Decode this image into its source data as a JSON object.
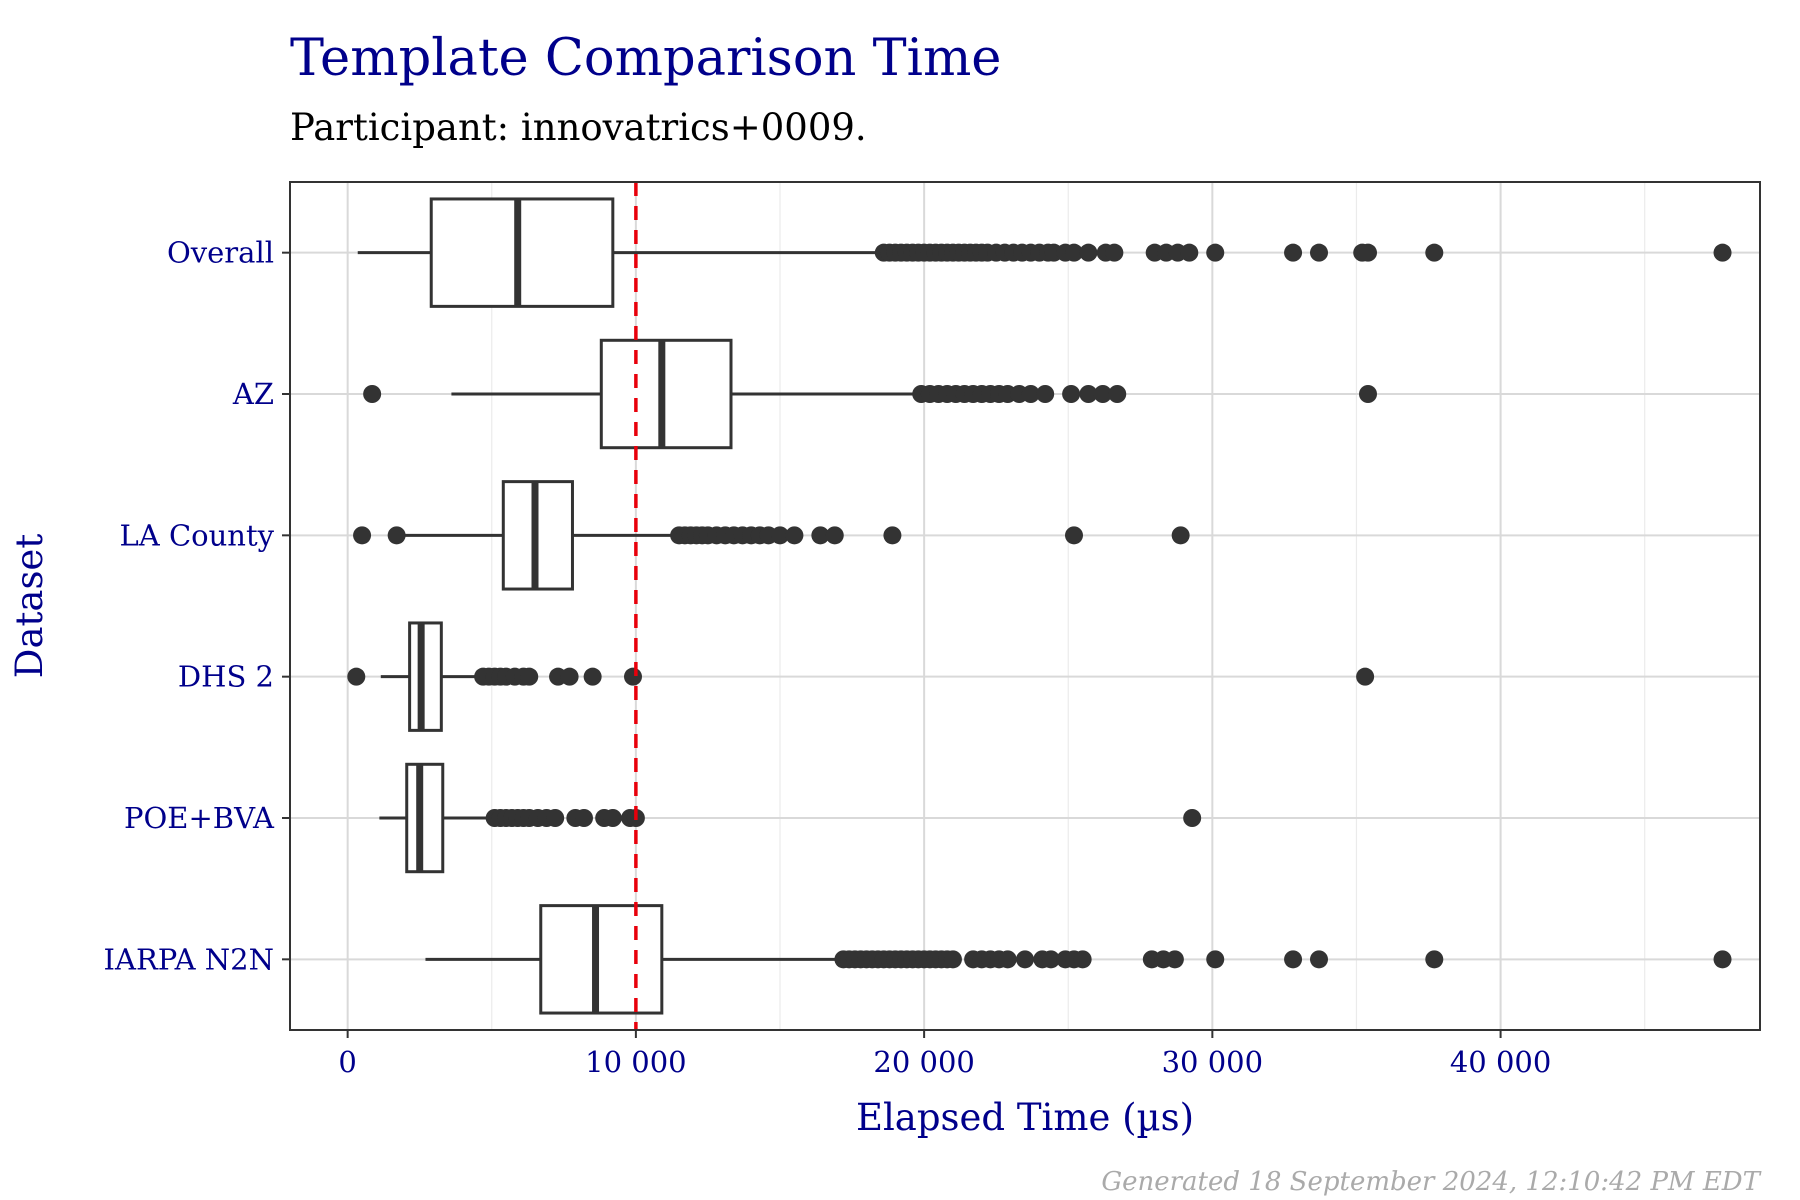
{
  "chart_data": {
    "type": "boxplot",
    "orientation": "horizontal",
    "title": "Template Comparison Time",
    "subtitle": "Participant: innovatrics+0009.",
    "xlabel": "Elapsed Time (µs)",
    "ylabel": "Dataset",
    "caption": "Generated 18 September 2024, 12:10:42 PM EDT",
    "xlim": [
      -2000,
      49000
    ],
    "xticks": [
      0,
      10000,
      20000,
      30000,
      40000
    ],
    "xtick_labels": [
      "0",
      "10 000",
      "20 000",
      "30 000",
      "40 000"
    ],
    "reference_line": {
      "x": 10000,
      "color": "#e8000b",
      "style": "dashed"
    },
    "grid": true,
    "colors": {
      "title": "#00008b",
      "axis_text": "#00008b",
      "box_stroke": "#333333",
      "grid": "#d9d9d9",
      "caption": "#aaaaaa"
    },
    "categories": [
      "Overall",
      "AZ",
      "LA County",
      "DHS 2",
      "POE+BVA",
      "IARPA N2N"
    ],
    "boxes": [
      {
        "name": "Overall",
        "whisker_low": 350,
        "q1": 2900,
        "median": 5900,
        "q3": 9200,
        "whisker_high": 18500,
        "outliers": [
          18600,
          18800,
          19000,
          19200,
          19400,
          19600,
          19800,
          20000,
          20200,
          20400,
          20600,
          20800,
          21000,
          21200,
          21400,
          21600,
          21800,
          22000,
          22200,
          22500,
          22800,
          23100,
          23400,
          23700,
          24000,
          24300,
          24500,
          24900,
          25200,
          25700,
          26300,
          26600,
          28000,
          28400,
          28800,
          29200,
          30100,
          32800,
          33700,
          35200,
          35400,
          37700,
          47700
        ]
      },
      {
        "name": "AZ",
        "whisker_low": 3600,
        "q1": 8800,
        "median": 10900,
        "q3": 13300,
        "whisker_high": 19800,
        "outliers": [
          850,
          19900,
          20200,
          20500,
          20800,
          21100,
          21400,
          21700,
          22000,
          22300,
          22600,
          22900,
          23300,
          23700,
          24200,
          25100,
          25700,
          26200,
          26700,
          35400
        ]
      },
      {
        "name": "LA County",
        "whisker_low": 2000,
        "q1": 5400,
        "median": 6500,
        "q3": 7800,
        "whisker_high": 11400,
        "outliers": [
          500,
          1700,
          11500,
          11700,
          11900,
          12100,
          12300,
          12500,
          12800,
          13100,
          13400,
          13700,
          14000,
          14300,
          14600,
          15000,
          15500,
          16400,
          16900,
          18900,
          25200,
          28900
        ]
      },
      {
        "name": "DHS 2",
        "whisker_low": 1150,
        "q1": 2150,
        "median": 2550,
        "q3": 3250,
        "whisker_high": 4600,
        "outliers": [
          300,
          4700,
          4900,
          5100,
          5300,
          5500,
          5800,
          6100,
          6300,
          7300,
          7700,
          8500,
          9900,
          35300
        ]
      },
      {
        "name": "POE+BVA",
        "whisker_low": 1100,
        "q1": 2050,
        "median": 2500,
        "q3": 3300,
        "whisker_high": 4900,
        "outliers": [
          5100,
          5300,
          5500,
          5700,
          5900,
          6100,
          6300,
          6600,
          6900,
          7200,
          7900,
          8200,
          8900,
          9200,
          9800,
          10000,
          29300
        ]
      },
      {
        "name": "IARPA N2N",
        "whisker_low": 2700,
        "q1": 6700,
        "median": 8600,
        "q3": 10900,
        "whisker_high": 17000,
        "outliers": [
          17200,
          17400,
          17600,
          17800,
          18000,
          18200,
          18400,
          18600,
          18800,
          19000,
          19200,
          19400,
          19600,
          19800,
          20000,
          20200,
          20400,
          20600,
          20800,
          21000,
          21700,
          22000,
          22300,
          22600,
          22900,
          23500,
          24100,
          24400,
          24900,
          25200,
          25500,
          27900,
          28300,
          28700,
          30100,
          32800,
          33700,
          37700,
          47700
        ]
      }
    ]
  }
}
